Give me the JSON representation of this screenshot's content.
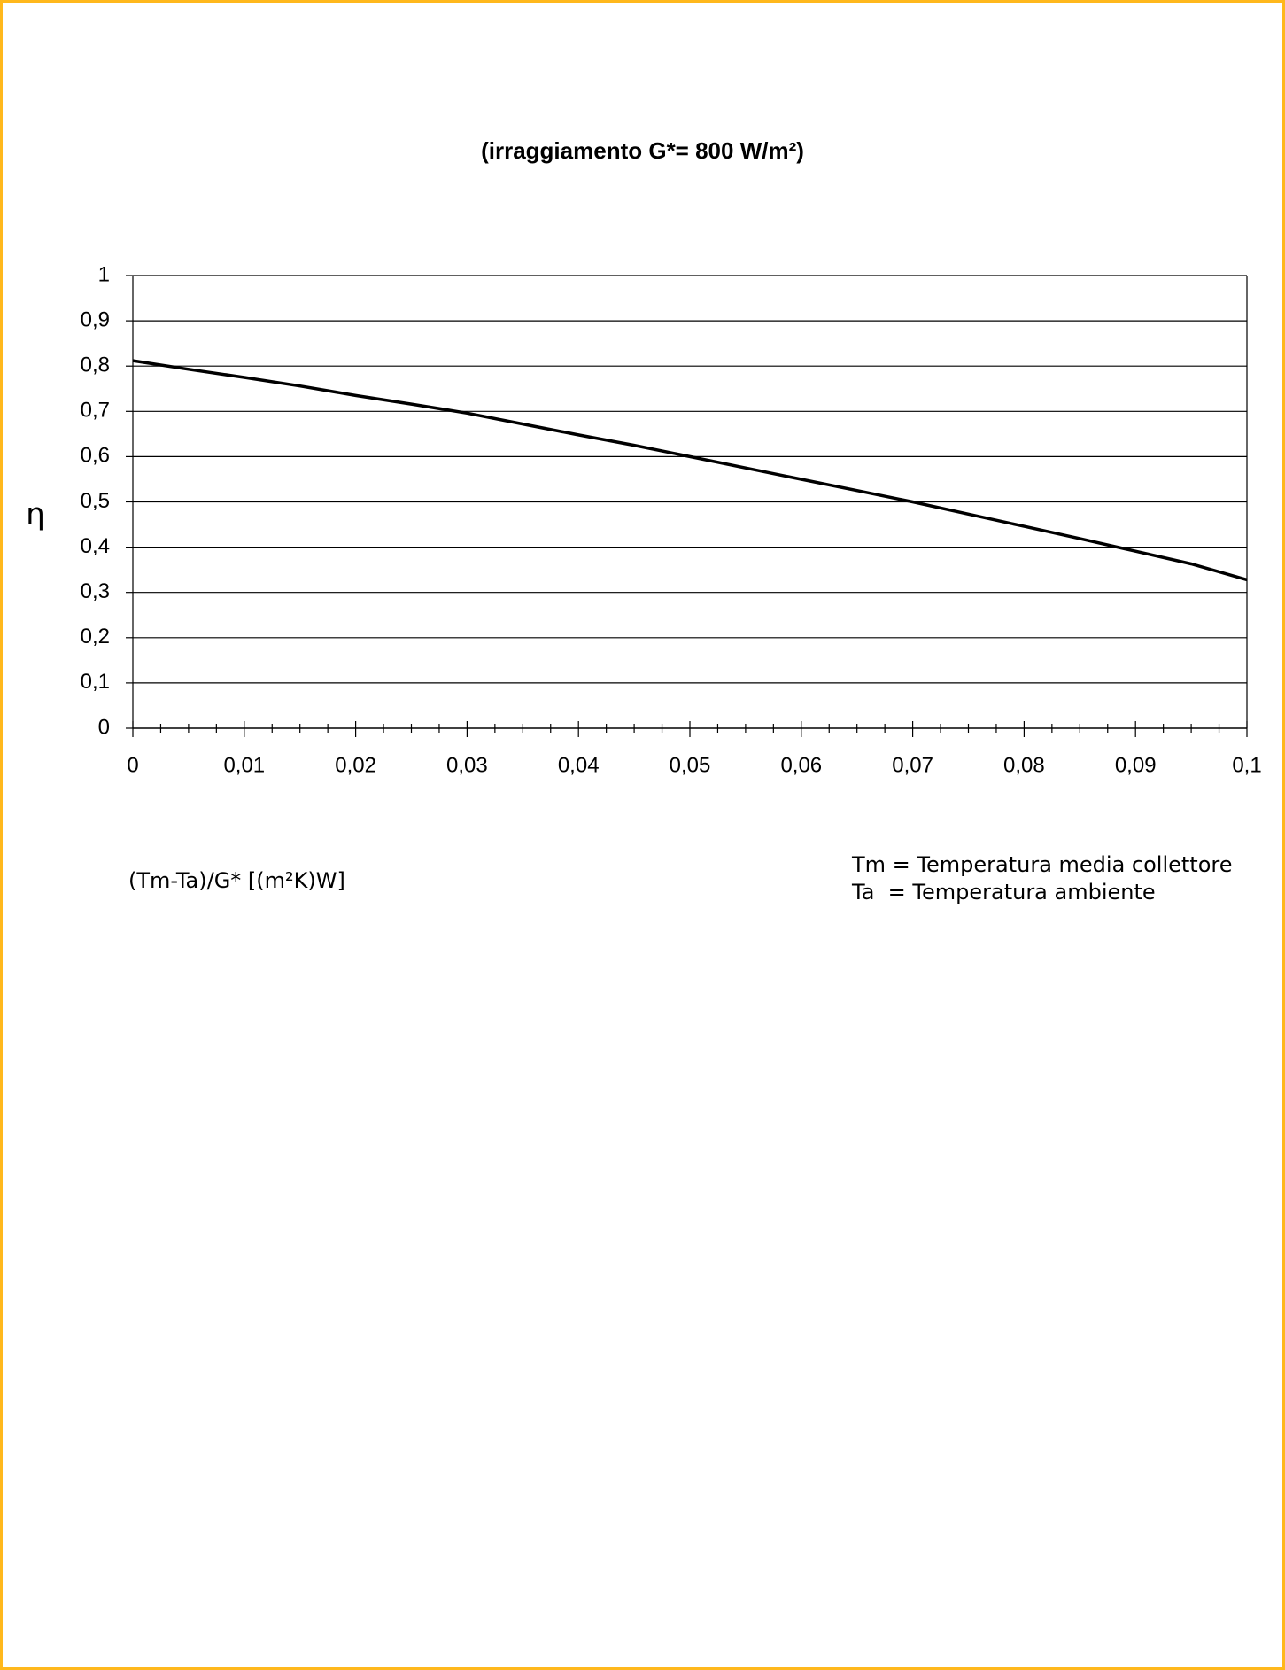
{
  "chart_data": {
    "type": "line",
    "title": "(irraggiamento G*= 800 W/m²)",
    "ylabel": "η",
    "xlabel": "(Tm-Ta)/G* [(m²K)W]",
    "xlim": [
      0,
      0.1
    ],
    "ylim": [
      0,
      1
    ],
    "x_tick_labels": [
      "0",
      "0,01",
      "0,02",
      "0,03",
      "0,04",
      "0,05",
      "0,06",
      "0,07",
      "0,08",
      "0,09",
      "0,1"
    ],
    "y_tick_labels": [
      "0",
      "0,1",
      "0,2",
      "0,3",
      "0,4",
      "0,5",
      "0,6",
      "0,7",
      "0,8",
      "0,9",
      "1"
    ],
    "grid": "horizontal",
    "series": [
      {
        "x": [
          0,
          0.005,
          0.01,
          0.015,
          0.02,
          0.025,
          0.03,
          0.035,
          0.04,
          0.045,
          0.05,
          0.055,
          0.06,
          0.065,
          0.07,
          0.075,
          0.08,
          0.085,
          0.09,
          0.095,
          0.1
        ],
        "y": [
          0.812,
          0.793,
          0.775,
          0.756,
          0.735,
          0.716,
          0.696,
          0.672,
          0.648,
          0.625,
          0.6,
          0.575,
          0.55,
          0.525,
          0.5,
          0.473,
          0.446,
          0.419,
          0.391,
          0.363,
          0.328
        ]
      }
    ]
  },
  "legend_notes": {
    "line1": "Tm = Temperatura media collettore",
    "line2": "Ta  = Temperatura ambiente"
  },
  "colors": {
    "border": "#ffb81c",
    "line": "#000000",
    "grid": "#000000"
  }
}
